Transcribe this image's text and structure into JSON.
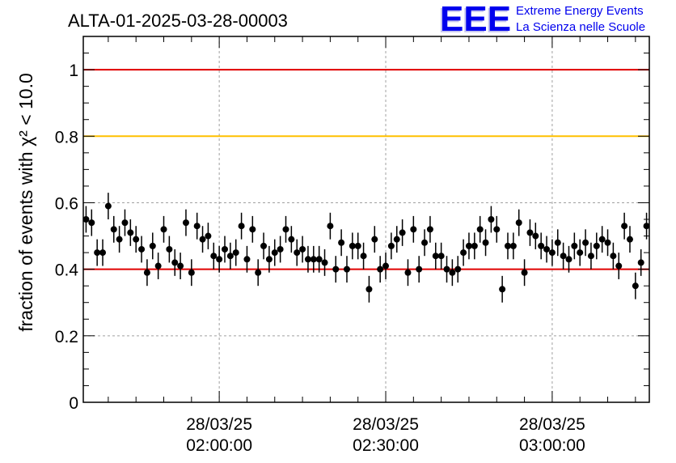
{
  "colors": {
    "upper_ref": "#e00000",
    "warn_ref": "#ffc000",
    "lower_ref": "#e00000",
    "logo": "#0000ee",
    "points": "#000000"
  },
  "chart_data": {
    "type": "scatter",
    "title": "ALTA-01-2025-03-28-00003",
    "ylabel": "fraction of events with χ² < 10.0",
    "ylim": [
      0,
      1.1
    ],
    "yticks": [
      0,
      0.2,
      0.4,
      0.6,
      0.8,
      1
    ],
    "ytick_labels": [
      "0",
      "0.2",
      "0.4",
      "0.6",
      "0.8",
      "1"
    ],
    "x_unit": "minutes after 28/03/25 01:30:00",
    "xlim": [
      0,
      102
    ],
    "xticks": [
      {
        "x": 24.5,
        "date": "28/03/25",
        "time": "02:00:00"
      },
      {
        "x": 54.5,
        "date": "28/03/25",
        "time": "02:30:00"
      },
      {
        "x": 84.5,
        "date": "28/03/25",
        "time": "03:00:00"
      }
    ],
    "grid": true,
    "reference_lines": [
      {
        "y": 1.0,
        "color": "#e00000"
      },
      {
        "y": 0.8,
        "color": "#ffc000"
      },
      {
        "y": 0.4,
        "color": "#e00000"
      }
    ],
    "error": 0.04,
    "series": [
      {
        "x": [
          0.5,
          1.5,
          2.5,
          3.5,
          4.5,
          5.5,
          6.5,
          7.5,
          8.5,
          9.5,
          10.5,
          11.5,
          12.5,
          13.5,
          14.5,
          15.5,
          16.5,
          17.5,
          18.5,
          19.5,
          20.5,
          21.5,
          22.5,
          23.5,
          24.5,
          25.5,
          26.5,
          27.5,
          28.5,
          29.5,
          30.5,
          31.5,
          32.5,
          33.5,
          34.5,
          35.5,
          36.5,
          37.5,
          38.5,
          39.5,
          40.5,
          41.5,
          42.5,
          43.5,
          44.5,
          45.5,
          46.5,
          47.5,
          48.5,
          49.5,
          50.5,
          51.5,
          52.5,
          53.5,
          54.5,
          55.5,
          56.5,
          57.5,
          58.5,
          59.5,
          60.5,
          61.5,
          62.5,
          63.5,
          64.5,
          65.5,
          66.5,
          67.5,
          68.5,
          69.5,
          70.5,
          71.5,
          72.5,
          73.5,
          74.5,
          75.5,
          76.5,
          77.5,
          78.5,
          79.5,
          80.5,
          81.5,
          82.5,
          83.5,
          84.5,
          85.5,
          86.5,
          87.5,
          88.5,
          89.5,
          90.5,
          91.5,
          92.5,
          93.5,
          94.5,
          95.5,
          96.5,
          97.5,
          98.5,
          99.5,
          100.5,
          101.5
        ],
        "y": [
          0.55,
          0.54,
          0.45,
          0.45,
          0.59,
          0.52,
          0.49,
          0.54,
          0.51,
          0.49,
          0.46,
          0.39,
          0.47,
          0.41,
          0.52,
          0.46,
          0.42,
          0.41,
          0.54,
          0.39,
          0.53,
          0.49,
          0.5,
          0.44,
          0.43,
          0.46,
          0.44,
          0.45,
          0.53,
          0.43,
          0.52,
          0.39,
          0.47,
          0.43,
          0.45,
          0.46,
          0.52,
          0.49,
          0.45,
          0.46,
          0.43,
          0.43,
          0.43,
          0.42,
          0.53,
          0.4,
          0.48,
          0.4,
          0.47,
          0.47,
          0.44,
          0.34,
          0.49,
          0.4,
          0.41,
          0.47,
          0.49,
          0.51,
          0.39,
          0.52,
          0.4,
          0.48,
          0.52,
          0.44,
          0.44,
          0.4,
          0.39,
          0.4,
          0.45,
          0.47,
          0.47,
          0.52,
          0.48,
          0.55,
          0.52,
          0.34,
          0.47,
          0.47,
          0.54,
          0.39,
          0.51,
          0.5,
          0.47,
          0.46,
          0.45,
          0.48,
          0.44,
          0.43,
          0.47,
          0.45,
          0.48,
          0.44,
          0.47,
          0.49,
          0.48,
          0.44,
          0.41,
          0.53,
          0.49,
          0.35,
          0.42,
          0.53
        ]
      }
    ]
  },
  "logo": {
    "mark": "EEE",
    "line1": "Extreme Energy Events",
    "line2": "La Scienza nelle Scuole"
  }
}
